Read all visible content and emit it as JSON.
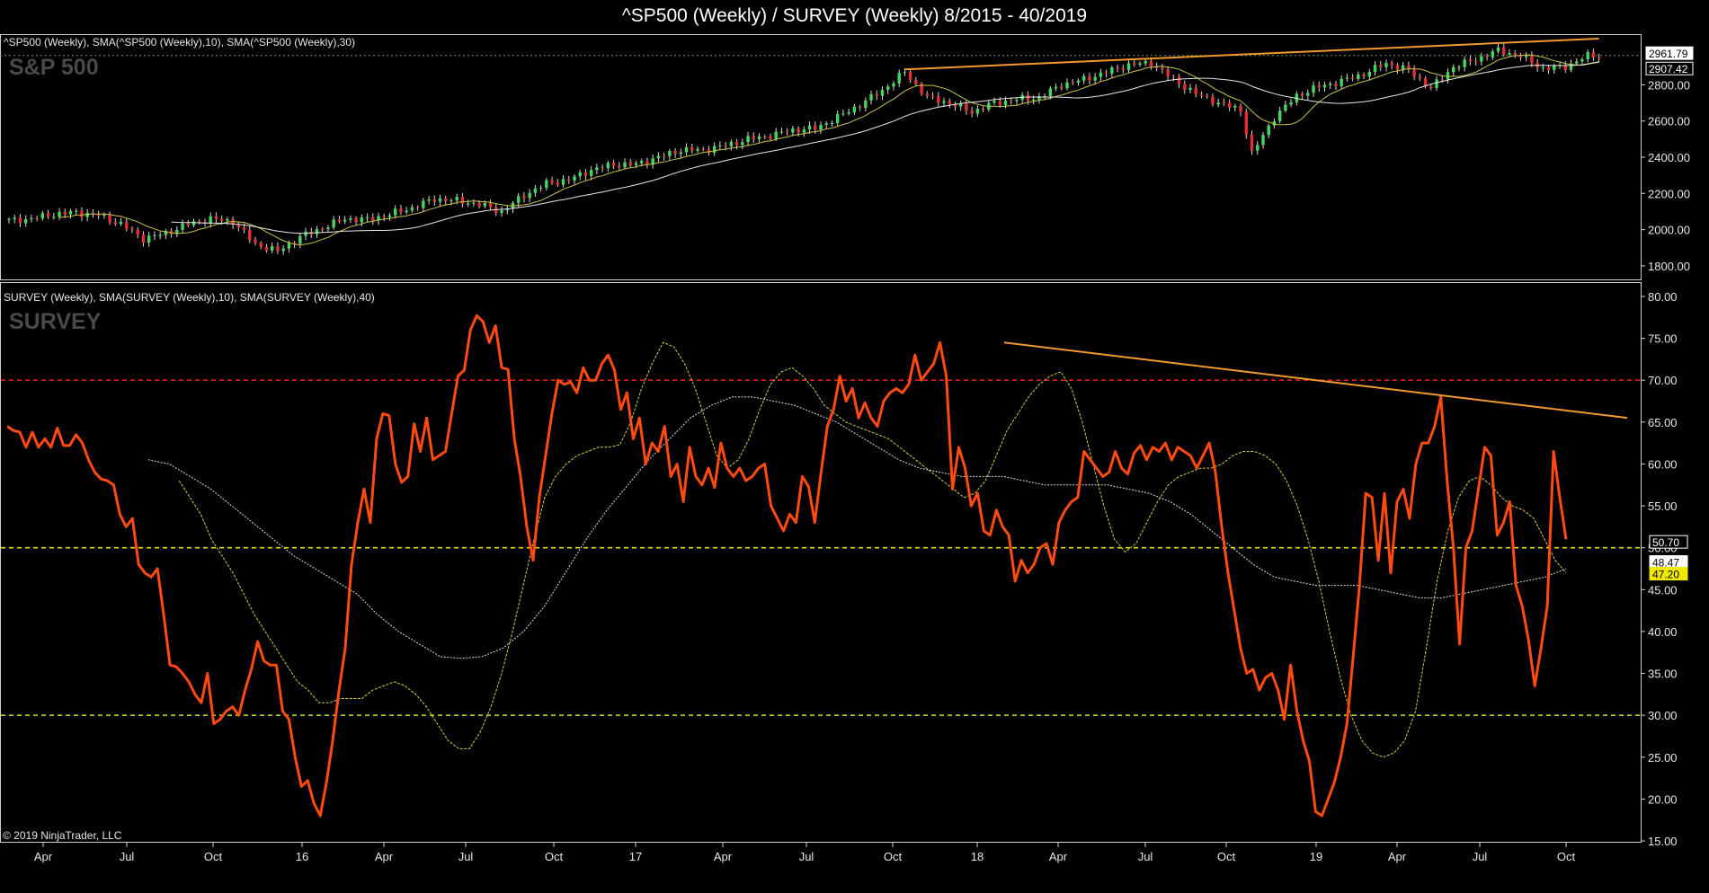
{
  "title": "^SP500 (Weekly) / SURVEY (Weekly)  8/2015 - 40/2019",
  "copyright": "© 2019 NinjaTrader, LLC",
  "chart_data": [
    {
      "type": "candlestick",
      "panel_label": "S&P 500",
      "legend": "^SP500 (Weekly),  SMA(^SP500 (Weekly),10),  SMA(^SP500 (Weekly),30)",
      "y_ticks": [
        "1800.00",
        "2000.00",
        "2200.00",
        "2400.00",
        "2600.00",
        "2800.00"
      ],
      "ylim": [
        1730,
        3070
      ],
      "last_value_labels": [
        "2961.79",
        "2907.42"
      ],
      "anchors": [
        [
          0,
          2050
        ],
        [
          4,
          2060
        ],
        [
          8,
          2085
        ],
        [
          12,
          2095
        ],
        [
          16,
          2080
        ],
        [
          20,
          2030
        ],
        [
          24,
          1950
        ],
        [
          28,
          1980
        ],
        [
          32,
          2030
        ],
        [
          36,
          2060
        ],
        [
          40,
          2045
        ],
        [
          44,
          1920
        ],
        [
          48,
          1880
        ],
        [
          52,
          1960
        ],
        [
          56,
          2010
        ],
        [
          60,
          2060
        ],
        [
          64,
          2055
        ],
        [
          68,
          2085
        ],
        [
          72,
          2120
        ],
        [
          76,
          2170
        ],
        [
          80,
          2160
        ],
        [
          84,
          2140
        ],
        [
          88,
          2100
        ],
        [
          92,
          2190
        ],
        [
          96,
          2255
        ],
        [
          100,
          2275
        ],
        [
          104,
          2330
        ],
        [
          108,
          2360
        ],
        [
          112,
          2360
        ],
        [
          116,
          2400
        ],
        [
          120,
          2440
        ],
        [
          124,
          2440
        ],
        [
          128,
          2465
        ],
        [
          132,
          2500
        ],
        [
          136,
          2520
        ],
        [
          140,
          2550
        ],
        [
          144,
          2560
        ],
        [
          148,
          2620
        ],
        [
          152,
          2690
        ],
        [
          156,
          2770
        ],
        [
          160,
          2870
        ],
        [
          164,
          2730
        ],
        [
          168,
          2700
        ],
        [
          172,
          2650
        ],
        [
          176,
          2700
        ],
        [
          180,
          2720
        ],
        [
          184,
          2730
        ],
        [
          188,
          2800
        ],
        [
          192,
          2830
        ],
        [
          196,
          2870
        ],
        [
          200,
          2910
        ],
        [
          204,
          2920
        ],
        [
          208,
          2830
        ],
        [
          212,
          2750
        ],
        [
          216,
          2700
        ],
        [
          220,
          2660
        ],
        [
          222,
          2420
        ],
        [
          226,
          2620
        ],
        [
          230,
          2740
        ],
        [
          234,
          2790
        ],
        [
          238,
          2820
        ],
        [
          242,
          2860
        ],
        [
          246,
          2920
        ],
        [
          250,
          2880
        ],
        [
          254,
          2780
        ],
        [
          258,
          2900
        ],
        [
          262,
          2940
        ],
        [
          266,
          2990
        ],
        [
          270,
          2960
        ],
        [
          274,
          2890
        ],
        [
          278,
          2900
        ],
        [
          282,
          2960
        ],
        [
          284,
          2960
        ]
      ],
      "resistance_line": [
        [
          160,
          2885
        ],
        [
          284,
          3055
        ]
      ]
    },
    {
      "type": "line",
      "panel_label": "SURVEY",
      "legend": "SURVEY (Weekly),  SMA(SURVEY (Weekly),10),  SMA(SURVEY (Weekly),40)",
      "y_ticks": [
        "15.00",
        "20.00",
        "25.00",
        "30.00",
        "35.00",
        "40.00",
        "45.00",
        "50.00",
        "55.00",
        "60.00",
        "65.00",
        "70.00",
        "75.00",
        "80.00"
      ],
      "ylim": [
        15,
        81.5
      ],
      "last_value_labels": [
        "50.70",
        "48.47",
        "47.20"
      ],
      "reference_lines": [
        {
          "value": 70,
          "color": "#e02020"
        },
        {
          "value": 50,
          "color": "#e8e000"
        },
        {
          "value": 30,
          "color": "#b0d020"
        }
      ],
      "series": [
        {
          "color": "#ff4a10",
          "values": [
            64.5,
            64,
            63.8,
            62,
            63.8,
            62,
            63,
            62,
            64.3,
            62.2,
            62.2,
            63.5,
            62.5,
            60.5,
            59,
            58.2,
            58,
            57.5,
            54,
            52.5,
            53.5,
            48,
            47,
            46.5,
            47.5,
            42,
            36,
            35.8,
            35,
            34,
            32.5,
            31.5,
            35,
            29,
            29.5,
            30.5,
            31,
            30,
            33,
            35.5,
            38.8,
            36.5,
            36,
            36,
            30.5,
            29.5,
            25,
            21.5,
            22.2,
            19.5,
            18,
            22,
            27,
            33,
            38,
            48,
            53,
            57,
            53,
            63,
            66,
            65.8,
            60,
            57.8,
            58.5,
            64.8,
            61.5,
            65.5,
            60.5,
            61,
            61.5,
            66,
            70.5,
            71.2,
            76,
            77.7,
            77,
            74.5,
            76.5,
            71.5,
            71.3,
            63,
            58.5,
            52.5,
            48.5,
            56,
            61,
            66,
            70,
            69.5,
            69.8,
            68.5,
            71.5,
            70,
            70,
            72,
            73,
            71.2,
            66.5,
            68.5,
            63,
            65.5,
            60,
            62.5,
            61.5,
            64.5,
            58.5,
            60,
            55.5,
            62,
            58.5,
            57.5,
            59.5,
            57.2,
            62.5,
            59.5,
            58.5,
            59.5,
            58,
            58.5,
            59.5,
            60,
            55,
            53.5,
            52,
            54,
            53,
            58.5,
            57.3,
            53,
            59,
            64.5,
            66.5,
            70.5,
            67.5,
            69,
            65.5,
            67.3,
            65.5,
            64.5,
            67.5,
            68.5,
            69,
            68.5,
            69.5,
            73,
            70,
            71,
            72,
            74.5,
            70.5,
            57,
            62,
            59.5,
            55,
            56.5,
            52,
            51.5,
            54.5,
            52.5,
            51.5,
            46,
            48.5,
            47,
            48,
            50,
            50.5,
            48,
            53,
            54.5,
            55.5,
            56,
            61.5,
            60.5,
            59.5,
            58.5,
            59,
            61.5,
            59.5,
            58.8,
            61.3,
            62.2,
            60.5,
            62,
            61.5,
            62.5,
            60.5,
            62,
            61.5,
            61,
            59.5,
            61,
            62.5,
            59,
            52.5,
            47,
            42.5,
            38,
            35,
            35.5,
            33,
            34.5,
            35,
            33,
            29.5,
            36,
            30.5,
            27,
            24.5,
            18.5,
            18,
            20,
            22,
            25,
            29,
            37,
            45.5,
            56.5,
            56,
            48.5,
            56.5,
            47,
            55.5,
            57,
            53.5,
            60,
            62.5,
            62.5,
            64.5,
            68,
            58,
            50,
            38.5,
            50,
            52,
            57,
            62,
            61,
            51.5,
            53,
            55.5,
            45.5,
            43,
            39,
            33.5,
            38,
            43,
            61.5,
            56,
            51
          ],
          "name": ""
        },
        {
          "color": "#d8d040",
          "values": [
            null,
            null,
            null,
            null,
            null,
            null,
            null,
            null,
            null,
            null,
            null,
            null,
            null,
            null,
            null,
            null,
            58,
            56,
            54,
            51,
            49,
            47,
            44.5,
            42,
            40,
            38,
            36,
            34,
            33,
            31.5,
            31.5,
            32,
            32,
            32,
            33,
            33.5,
            34,
            33.5,
            32.5,
            31,
            29,
            27,
            26,
            26,
            28,
            31,
            35,
            40,
            45.5,
            51,
            56,
            58.5,
            60,
            61,
            61.5,
            62,
            62,
            62.3,
            65,
            69,
            72,
            74.5,
            74,
            72,
            69,
            65,
            61,
            59.5,
            60.5,
            63,
            66.5,
            69.5,
            71,
            71.5,
            70.5,
            69,
            67,
            66,
            65,
            64.5,
            64,
            63.5,
            63,
            62,
            61,
            60,
            59,
            58,
            57,
            56,
            56.5,
            58,
            61,
            64,
            66,
            68,
            69.5,
            70.5,
            71,
            69,
            65,
            60,
            55,
            51,
            49.5,
            50.5,
            53,
            55.5,
            57.5,
            58.5,
            59,
            59.5,
            59.5,
            60,
            61,
            61.5,
            61.5,
            61,
            60,
            58,
            55,
            51,
            46,
            40,
            34.5,
            30,
            27,
            25.5,
            25,
            25.5,
            27,
            30.5,
            38,
            46,
            52,
            56,
            58,
            58.5,
            57.5,
            56,
            55,
            54.5,
            53.5,
            51,
            48.5,
            47
          ]
        },
        {
          "color": "#d0d0d0",
          "values": [
            60.5,
            60,
            58.5,
            57,
            55,
            53,
            51,
            49,
            47.5,
            46,
            44.5,
            42,
            40,
            38.5,
            37,
            36.8,
            37,
            38,
            40,
            43,
            47,
            51,
            54.5,
            57.5,
            60.5,
            63,
            65.5,
            67,
            68,
            68,
            67.5,
            67,
            66,
            65,
            63.5,
            62,
            60.5,
            59.5,
            59,
            58.5,
            58.5,
            58.5,
            58,
            57.5,
            57.5,
            57.5,
            57.5,
            57,
            56.5,
            55.5,
            54,
            52,
            50,
            48,
            46.5,
            46,
            45.5,
            45.5,
            45.5,
            45,
            44.5,
            44,
            44,
            44.5,
            45,
            45.5,
            46,
            46.5,
            47.5
          ]
        }
      ],
      "resistance_line": [
        [
          160,
          74.5
        ],
        [
          290,
          65.5
        ]
      ]
    }
  ],
  "x_axis_labels": [
    "Apr",
    "Jul",
    "Oct",
    "16",
    "Apr",
    "Jul",
    "Oct",
    "17",
    "Apr",
    "Jul",
    "Oct",
    "18",
    "Apr",
    "Jul",
    "Oct",
    "19",
    "Apr",
    "Jul",
    "Oct"
  ]
}
